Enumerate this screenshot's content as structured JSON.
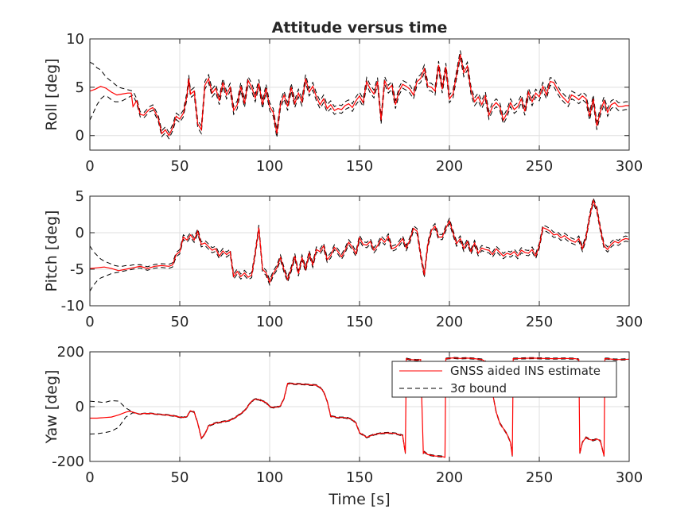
{
  "figure_title": "Attitude versus time",
  "legend": {
    "entries": [
      "GNSS aided INS estimate",
      "3σ bound"
    ],
    "placement": "upper-right of bottom panel",
    "colors": [
      "#ff0000",
      "#000000"
    ]
  },
  "chart_data": [
    {
      "type": "line",
      "title": "Attitude versus time",
      "xlabel": "",
      "ylabel": "Roll [deg]",
      "xlim": [
        0,
        300
      ],
      "ylim": [
        -1.5,
        10
      ],
      "xticks": [
        0,
        50,
        100,
        150,
        200,
        250,
        300
      ],
      "yticks": [
        0,
        5,
        10
      ],
      "grid": true,
      "series": [
        {
          "name": "GNSS aided INS estimate",
          "color": "#ff0000",
          "style": "solid",
          "x": [
            0,
            3,
            6,
            9,
            12,
            15,
            18,
            21,
            23,
            24,
            26,
            28,
            30,
            33,
            35,
            38,
            40,
            42,
            44,
            46,
            48,
            50,
            52,
            54,
            55,
            56,
            58,
            60,
            62,
            64,
            66,
            68,
            70,
            72,
            74,
            76,
            78,
            80,
            82,
            84,
            86,
            88,
            90,
            92,
            94,
            96,
            98,
            100,
            102,
            104,
            106,
            108,
            110,
            112,
            114,
            116,
            118,
            120,
            122,
            124,
            126,
            128,
            130,
            132,
            134,
            136,
            138,
            140,
            142,
            144,
            146,
            148,
            150,
            152,
            154,
            156,
            158,
            160,
            162,
            164,
            166,
            168,
            170,
            172,
            174,
            176,
            178,
            180,
            182,
            184,
            186,
            188,
            190,
            192,
            194,
            196,
            198,
            200,
            202,
            204,
            206,
            208,
            210,
            212,
            214,
            216,
            218,
            220,
            222,
            224,
            226,
            228,
            230,
            232,
            234,
            236,
            238,
            240,
            242,
            244,
            246,
            248,
            250,
            252,
            254,
            256,
            258,
            260,
            262,
            264,
            266,
            268,
            270,
            272,
            274,
            276,
            278,
            280,
            282,
            284,
            286,
            288,
            290,
            292,
            294,
            296,
            298,
            300
          ],
          "y": [
            4.6,
            4.8,
            5.1,
            4.9,
            4.5,
            4.2,
            4.3,
            4.4,
            4.4,
            3.0,
            3.6,
            2.2,
            2.1,
            2.7,
            2.9,
            1.8,
            0.2,
            0.6,
            0.0,
            0.8,
            2.0,
            1.7,
            2.3,
            4.1,
            5.9,
            4.3,
            4.6,
            1.2,
            0.6,
            5.2,
            5.9,
            4.4,
            4.9,
            3.6,
            5.5,
            4.2,
            5.0,
            2.6,
            3.2,
            5.1,
            3.3,
            5.7,
            5.0,
            3.9,
            5.4,
            3.2,
            4.9,
            3.0,
            2.4,
            0.2,
            3.2,
            4.2,
            3.0,
            5.0,
            3.3,
            4.4,
            3.5,
            5.9,
            4.5,
            5.1,
            4.0,
            3.2,
            3.8,
            2.8,
            3.2,
            2.6,
            2.8,
            2.7,
            3.1,
            3.3,
            2.9,
            3.6,
            4.1,
            3.4,
            5.6,
            4.8,
            4.3,
            5.6,
            1.6,
            5.7,
            4.8,
            5.2,
            3.2,
            4.6,
            5.3,
            5.1,
            4.8,
            4.2,
            5.6,
            5.9,
            6.9,
            5.1,
            5.0,
            4.6,
            7.3,
            4.8,
            7.1,
            3.8,
            4.3,
            6.3,
            8.4,
            6.5,
            7.2,
            4.7,
            3.5,
            4.0,
            3.2,
            4.1,
            2.1,
            3.0,
            3.4,
            3.0,
            1.6,
            2.3,
            3.4,
            2.7,
            3.0,
            3.8,
            2.5,
            4.5,
            3.5,
            4.4,
            4.0,
            5.1,
            4.2,
            5.6,
            5.5,
            4.8,
            4.2,
            3.8,
            3.4,
            4.2,
            4.0,
            3.7,
            4.1,
            3.8,
            2.0,
            3.8,
            1.0,
            2.5,
            3.6,
            2.4,
            3.2,
            3.4,
            3.0,
            3.0,
            3.1,
            3.1
          ]
        },
        {
          "name": "3σ bound",
          "color": "#000000",
          "style": "dashed",
          "x": [
            0,
            2,
            4,
            6,
            8,
            10,
            12,
            14,
            16,
            18,
            20,
            22,
            24
          ],
          "upper": [
            7.6,
            7.4,
            7.0,
            6.8,
            6.3,
            5.9,
            5.6,
            5.3,
            5.0,
            4.9,
            4.8,
            4.7,
            4.6
          ],
          "lower": [
            1.6,
            2.4,
            3.2,
            3.8,
            4.1,
            4.0,
            3.7,
            3.5,
            3.5,
            3.6,
            3.8,
            4.0,
            4.2
          ],
          "follows_estimate_after_x": 24,
          "tail_spread": 0.4
        }
      ]
    },
    {
      "type": "line",
      "title": "",
      "xlabel": "",
      "ylabel": "Pitch [deg]",
      "xlim": [
        0,
        300
      ],
      "ylim": [
        -10,
        5
      ],
      "xticks": [
        0,
        50,
        100,
        150,
        200,
        250,
        300
      ],
      "yticks": [
        -10,
        -5,
        0,
        5
      ],
      "grid": true,
      "series": [
        {
          "name": "GNSS aided INS estimate",
          "color": "#ff0000",
          "style": "solid",
          "x": [
            0,
            4,
            8,
            12,
            16,
            20,
            24,
            28,
            32,
            36,
            40,
            44,
            46,
            48,
            50,
            52,
            54,
            56,
            58,
            60,
            62,
            64,
            66,
            68,
            70,
            72,
            74,
            76,
            78,
            80,
            82,
            84,
            86,
            88,
            90,
            92,
            94,
            96,
            98,
            100,
            102,
            104,
            106,
            108,
            110,
            112,
            114,
            116,
            118,
            120,
            122,
            124,
            126,
            128,
            130,
            132,
            134,
            136,
            138,
            140,
            142,
            144,
            146,
            148,
            150,
            152,
            154,
            156,
            158,
            160,
            162,
            164,
            166,
            168,
            170,
            172,
            174,
            176,
            178,
            180,
            182,
            184,
            186,
            188,
            190,
            192,
            194,
            196,
            198,
            200,
            202,
            204,
            206,
            208,
            210,
            212,
            214,
            216,
            218,
            220,
            222,
            224,
            226,
            228,
            230,
            232,
            234,
            236,
            238,
            240,
            242,
            244,
            246,
            248,
            250,
            252,
            254,
            256,
            258,
            260,
            262,
            264,
            266,
            268,
            270,
            272,
            274,
            276,
            278,
            280,
            282,
            284,
            286,
            288,
            290,
            292,
            294,
            296,
            298,
            300
          ],
          "y": [
            -4.9,
            -4.8,
            -4.7,
            -4.9,
            -5.2,
            -5.0,
            -4.8,
            -4.6,
            -4.9,
            -4.6,
            -4.5,
            -4.6,
            -4.4,
            -3.0,
            -2.6,
            -0.6,
            -1.0,
            -0.3,
            -1.0,
            0.2,
            -1.6,
            -1.4,
            -1.9,
            -2.4,
            -2.2,
            -3.2,
            -2.5,
            -3.0,
            -2.6,
            -6.0,
            -5.3,
            -6.0,
            -5.5,
            -6.1,
            -5.8,
            -2.8,
            0.7,
            -5.0,
            -5.5,
            -6.8,
            -5.6,
            -4.8,
            -3.4,
            -5.1,
            -6.4,
            -5.0,
            -3.2,
            -5.6,
            -3.4,
            -5.0,
            -2.8,
            -4.4,
            -2.3,
            -2.6,
            -1.8,
            -3.7,
            -3.1,
            -2.0,
            -2.6,
            -3.3,
            -2.4,
            -1.3,
            -2.0,
            -2.9,
            -0.7,
            -1.6,
            -1.7,
            -1.2,
            -2.4,
            -1.8,
            -0.8,
            -1.3,
            -0.5,
            -2.2,
            -2.0,
            -1.5,
            -0.8,
            -2.1,
            -1.0,
            0.6,
            0.2,
            -3.0,
            -5.8,
            -1.6,
            0.3,
            0.9,
            -0.6,
            -0.6,
            0.6,
            1.6,
            0.0,
            -1.5,
            -0.8,
            -2.2,
            -1.2,
            -2.6,
            -1.4,
            -2.8,
            -2.1,
            -2.3,
            -2.4,
            -3.0,
            -2.2,
            -2.7,
            -3.2,
            -2.8,
            -3.0,
            -2.6,
            -3.2,
            -2.4,
            -2.7,
            -2.8,
            -2.3,
            -3.2,
            -1.8,
            0.7,
            0.5,
            0.2,
            -0.3,
            -0.2,
            -0.7,
            -0.4,
            -0.8,
            -1.1,
            -1.3,
            -0.8,
            -2.2,
            -0.6,
            2.2,
            4.4,
            3.2,
            0.5,
            -1.8,
            -2.3,
            -1.6,
            -1.2,
            -1.4,
            -1.0,
            -0.8,
            -0.9
          ]
        },
        {
          "name": "3σ bound",
          "color": "#000000",
          "style": "dashed",
          "x": [
            0,
            2,
            4,
            6,
            8,
            10,
            12,
            14,
            16,
            18,
            20,
            22,
            24
          ],
          "upper": [
            -1.8,
            -2.6,
            -3.1,
            -3.6,
            -3.9,
            -4.1,
            -4.3,
            -4.5,
            -4.6,
            -4.6,
            -4.5,
            -4.5,
            -4.4
          ],
          "lower": [
            -8.0,
            -7.2,
            -6.6,
            -6.2,
            -6.0,
            -5.8,
            -5.6,
            -5.5,
            -5.4,
            -5.3,
            -5.2,
            -5.1,
            -5.0
          ],
          "follows_estimate_after_x": 24,
          "tail_spread": 0.35
        }
      ]
    },
    {
      "type": "line",
      "title": "",
      "xlabel": "Time [s]",
      "ylabel": "Yaw [deg]",
      "xlim": [
        0,
        300
      ],
      "ylim": [
        -200,
        200
      ],
      "xticks": [
        0,
        50,
        100,
        150,
        200,
        250,
        300
      ],
      "yticks": [
        -200,
        0,
        200
      ],
      "grid": true,
      "series": [
        {
          "name": "GNSS aided INS estimate",
          "color": "#ff0000",
          "style": "solid",
          "x": [
            0,
            4,
            8,
            12,
            16,
            20,
            22,
            24,
            26,
            28,
            30,
            34,
            38,
            42,
            46,
            50,
            52,
            54,
            56,
            58,
            60,
            62,
            64,
            66,
            70,
            74,
            78,
            82,
            86,
            90,
            92,
            94,
            96,
            98,
            100,
            102,
            104,
            106,
            108,
            110,
            114,
            118,
            122,
            126,
            128,
            130,
            132,
            134,
            138,
            142,
            144,
            146,
            148,
            150,
            154,
            158,
            162,
            166,
            170,
            172,
            174,
            175.5,
            176,
            178,
            182,
            184,
            185.5,
            186,
            188,
            192,
            196,
            197.5,
            198,
            202,
            206,
            210,
            214,
            218,
            220,
            222,
            224,
            226,
            228,
            230,
            232,
            234,
            235,
            235.5,
            240,
            246,
            252,
            258,
            264,
            270,
            272,
            272.5,
            274,
            276,
            278,
            280,
            282,
            284,
            286,
            286.5,
            288,
            292,
            296,
            300
          ],
          "y": [
            -42,
            -42,
            -40,
            -38,
            -30,
            -20,
            -17,
            -20,
            -25,
            -27,
            -25,
            -25,
            -28,
            -30,
            -33,
            -38,
            -40,
            -36,
            -15,
            -20,
            -60,
            -115,
            -100,
            -70,
            -60,
            -55,
            -50,
            -35,
            -15,
            20,
            27,
            26,
            20,
            15,
            0,
            -3,
            -2,
            3,
            30,
            85,
            83,
            82,
            80,
            78,
            70,
            55,
            20,
            -35,
            -40,
            -40,
            -43,
            -48,
            -60,
            -95,
            -112,
            -102,
            -97,
            -96,
            -98,
            -102,
            -105,
            -170,
            175,
            172,
            170,
            172,
            -170,
            -165,
            -175,
            -180,
            -182,
            -185,
            175,
            178,
            176,
            177,
            175,
            172,
            165,
            120,
            50,
            -20,
            -60,
            -80,
            -100,
            -130,
            -180,
            175,
            176,
            177,
            176,
            175,
            176,
            175,
            172,
            -170,
            -130,
            -112,
            -120,
            -123,
            -118,
            -125,
            -180,
            175,
            175,
            172,
            172,
            173
          ]
        },
        {
          "name": "3σ bound",
          "color": "#000000",
          "style": "dashed",
          "x": [
            0,
            4,
            8,
            12,
            16,
            20,
            24
          ],
          "upper": [
            20,
            18,
            15,
            22,
            20,
            -5,
            -20
          ],
          "lower": [
            -100,
            -99,
            -95,
            -90,
            -75,
            -38,
            -22
          ],
          "follows_estimate_after_x": 24,
          "tail_spread": 2
        }
      ]
    }
  ]
}
